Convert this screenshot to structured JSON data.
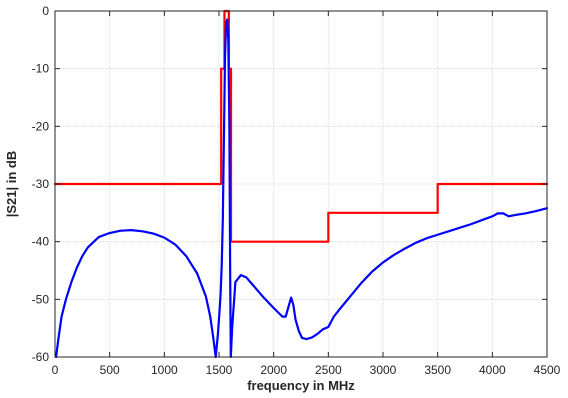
{
  "chart_data": {
    "type": "line",
    "title": "",
    "xlabel": "frequency in MHz",
    "ylabel": "|S21| in dB",
    "xlim": [
      0,
      4500
    ],
    "ylim": [
      -60,
      0
    ],
    "x_ticks": [
      0,
      500,
      1000,
      1500,
      2000,
      2500,
      3000,
      3500,
      4000,
      4500
    ],
    "y_ticks": [
      0,
      -10,
      -20,
      -30,
      -40,
      -50,
      -60
    ],
    "grid": true,
    "legend": "none",
    "series": [
      {
        "color": "#ff0000",
        "points": [
          [
            0,
            -30
          ],
          [
            1520,
            -30
          ],
          [
            1520,
            -10
          ],
          [
            1550,
            -10
          ],
          [
            1550,
            0
          ],
          [
            1590,
            0
          ],
          [
            1590,
            -10
          ],
          [
            1610,
            -10
          ],
          [
            1610,
            -40
          ],
          [
            2500,
            -40
          ],
          [
            2500,
            -35
          ],
          [
            3500,
            -35
          ],
          [
            3500,
            -30
          ],
          [
            4500,
            -30
          ]
        ]
      },
      {
        "color": "#0000ff",
        "points": [
          [
            10,
            -60
          ],
          [
            30,
            -57
          ],
          [
            60,
            -53
          ],
          [
            100,
            -50
          ],
          [
            150,
            -47
          ],
          [
            200,
            -44.5
          ],
          [
            250,
            -42.5
          ],
          [
            300,
            -41
          ],
          [
            400,
            -39.2
          ],
          [
            500,
            -38.5
          ],
          [
            600,
            -38.1
          ],
          [
            700,
            -38
          ],
          [
            800,
            -38.2
          ],
          [
            900,
            -38.6
          ],
          [
            1000,
            -39.3
          ],
          [
            1100,
            -40.5
          ],
          [
            1200,
            -42.5
          ],
          [
            1300,
            -45.5
          ],
          [
            1380,
            -49.5
          ],
          [
            1420,
            -53
          ],
          [
            1450,
            -57
          ],
          [
            1470,
            -60
          ],
          [
            1490,
            -56
          ],
          [
            1505,
            -52
          ],
          [
            1515,
            -49
          ],
          [
            1525,
            -44
          ],
          [
            1535,
            -36
          ],
          [
            1545,
            -22
          ],
          [
            1555,
            -8
          ],
          [
            1565,
            -2
          ],
          [
            1575,
            -1.5
          ],
          [
            1585,
            -5
          ],
          [
            1595,
            -20
          ],
          [
            1602,
            -45
          ],
          [
            1608,
            -60
          ],
          [
            1620,
            -55
          ],
          [
            1650,
            -47
          ],
          [
            1700,
            -45.8
          ],
          [
            1750,
            -46.2
          ],
          [
            1800,
            -47.3
          ],
          [
            1900,
            -49.5
          ],
          [
            2000,
            -51.5
          ],
          [
            2080,
            -53
          ],
          [
            2110,
            -53
          ],
          [
            2140,
            -51
          ],
          [
            2160,
            -49.7
          ],
          [
            2180,
            -51
          ],
          [
            2200,
            -53.5
          ],
          [
            2230,
            -55.5
          ],
          [
            2260,
            -56.7
          ],
          [
            2300,
            -56.9
          ],
          [
            2350,
            -56.6
          ],
          [
            2400,
            -56
          ],
          [
            2450,
            -55.2
          ],
          [
            2500,
            -54.8
          ],
          [
            2550,
            -53
          ],
          [
            2600,
            -51.8
          ],
          [
            2700,
            -49.5
          ],
          [
            2800,
            -47.2
          ],
          [
            2900,
            -45.2
          ],
          [
            3000,
            -43.6
          ],
          [
            3100,
            -42.3
          ],
          [
            3200,
            -41.2
          ],
          [
            3300,
            -40.2
          ],
          [
            3400,
            -39.4
          ],
          [
            3500,
            -38.8
          ],
          [
            3600,
            -38.2
          ],
          [
            3700,
            -37.6
          ],
          [
            3800,
            -37
          ],
          [
            3900,
            -36.3
          ],
          [
            4000,
            -35.6
          ],
          [
            4050,
            -35.1
          ],
          [
            4100,
            -35.1
          ],
          [
            4150,
            -35.6
          ],
          [
            4200,
            -35.4
          ],
          [
            4300,
            -35.1
          ],
          [
            4400,
            -34.7
          ],
          [
            4500,
            -34.2
          ]
        ]
      }
    ]
  }
}
